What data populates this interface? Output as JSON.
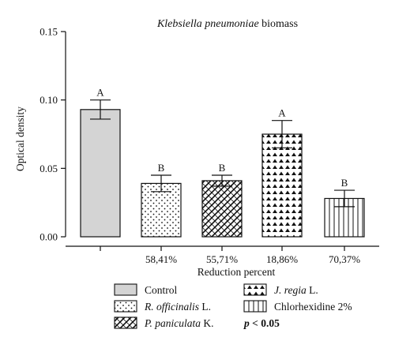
{
  "chart_data": {
    "type": "bar",
    "title": "Klebsiella pneumoniae biomass",
    "title_italic_part": "Klebsiella pneumoniae",
    "title_rest": " biomass",
    "ylabel": "Optical density",
    "xlabel": "Reduction percent",
    "ylim": [
      0,
      0.15
    ],
    "yticks": [
      "0.00",
      "0.05",
      "0.10",
      "0.15"
    ],
    "ytick_values": [
      0,
      0.05,
      0.1,
      0.15
    ],
    "categories": [
      "",
      "58,41%",
      "55,71%",
      "18,86%",
      "70,37%"
    ],
    "series": [
      {
        "values": [
          0.093,
          0.039,
          0.041,
          0.075,
          0.028
        ],
        "errors": [
          0.007,
          0.006,
          0.004,
          0.01,
          0.006
        ],
        "significance": [
          "A",
          "B",
          "B",
          "A",
          "B"
        ],
        "patterns": [
          "solid-gray",
          "dots",
          "brick",
          "triangles",
          "vlines"
        ]
      }
    ],
    "grid": false
  },
  "legend": {
    "items": [
      {
        "label": "Control",
        "italic": "",
        "suffix": "",
        "pattern": "solid-gray"
      },
      {
        "label": "",
        "italic": "J. regia",
        "suffix": " L.",
        "pattern": "triangles"
      },
      {
        "label": "",
        "italic": "R. officinalis",
        "suffix": " L.",
        "pattern": "dots"
      },
      {
        "label": "Chlorhexidine 2%",
        "italic": "",
        "suffix": "",
        "pattern": "vlines"
      },
      {
        "label": "",
        "italic": "P. paniculata",
        "suffix": " K.",
        "pattern": "brick"
      }
    ],
    "pvalue_p": "p",
    "pvalue_rest": " < 0.05"
  },
  "colors": {
    "control_fill": "#d4d4d4",
    "pattern_fill": "#ffffff",
    "stroke": "#111111"
  }
}
